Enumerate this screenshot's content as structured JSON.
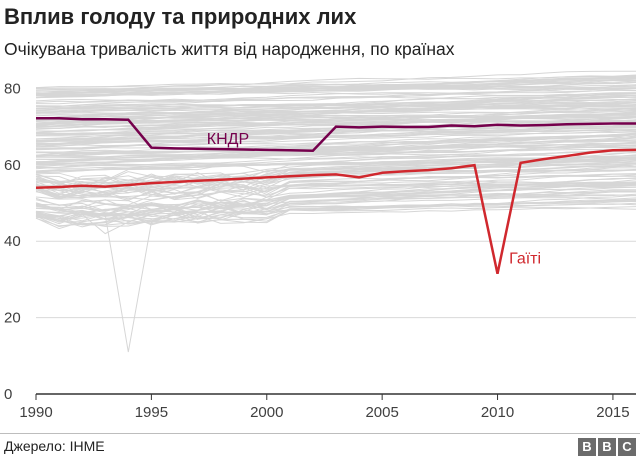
{
  "header": {
    "title": "Вплив голоду та природних лих",
    "subtitle": "Очікувана тривалість життя від народження, по країнах"
  },
  "footer": {
    "source": "Джерело: IHME",
    "logo": [
      "B",
      "B",
      "C"
    ]
  },
  "colors": {
    "background_lines": "#d6d6d6",
    "grid": "#d9d9d9",
    "axis": "#333333",
    "north_korea": "#75004c",
    "haiti": "#d0282e"
  },
  "chart_data": {
    "type": "line",
    "title": "Вплив голоду та природних лих",
    "subtitle": "Очікувана тривалість життя від народження, по країнах",
    "xlabel": "",
    "ylabel": "",
    "xlim": [
      1990,
      2016
    ],
    "ylim": [
      0,
      85
    ],
    "x_ticks": [
      1990,
      1995,
      2000,
      2005,
      2010,
      2015
    ],
    "y_ticks": [
      0,
      20,
      40,
      60,
      80
    ],
    "grid": true,
    "x": [
      1990,
      1991,
      1992,
      1993,
      1994,
      1995,
      1996,
      1997,
      1998,
      1999,
      2000,
      2001,
      2002,
      2003,
      2004,
      2005,
      2006,
      2007,
      2008,
      2009,
      2010,
      2011,
      2012,
      2013,
      2014,
      2015,
      2016
    ],
    "series": [
      {
        "name": "КНДР",
        "color": "#75004c",
        "values": [
          72.2,
          72.2,
          71.9,
          71.9,
          71.8,
          64.5,
          64.3,
          64.2,
          64.1,
          64.0,
          63.9,
          63.8,
          63.7,
          70.0,
          69.8,
          70.0,
          69.9,
          69.9,
          70.3,
          70.1,
          70.5,
          70.3,
          70.4,
          70.6,
          70.7,
          70.8,
          70.8
        ]
      },
      {
        "name": "Гаїті",
        "color": "#d0282e",
        "values": [
          54.0,
          54.2,
          54.5,
          54.3,
          54.7,
          55.2,
          55.5,
          55.8,
          56.1,
          56.4,
          56.7,
          57.0,
          57.3,
          57.5,
          56.7,
          57.9,
          58.3,
          58.6,
          59.1,
          59.9,
          31.5,
          60.5,
          61.5,
          62.3,
          63.2,
          63.8,
          63.9
        ]
      }
    ],
    "background_countries": {
      "count": 185,
      "range_low_1990": 46,
      "range_high_1990": 80,
      "range_low_2016": 50,
      "range_high_2016": 84,
      "notable_dip": {
        "year": 1994,
        "value": 11
      },
      "notable_dip_2": {
        "year": 1993,
        "value": 42
      }
    }
  }
}
